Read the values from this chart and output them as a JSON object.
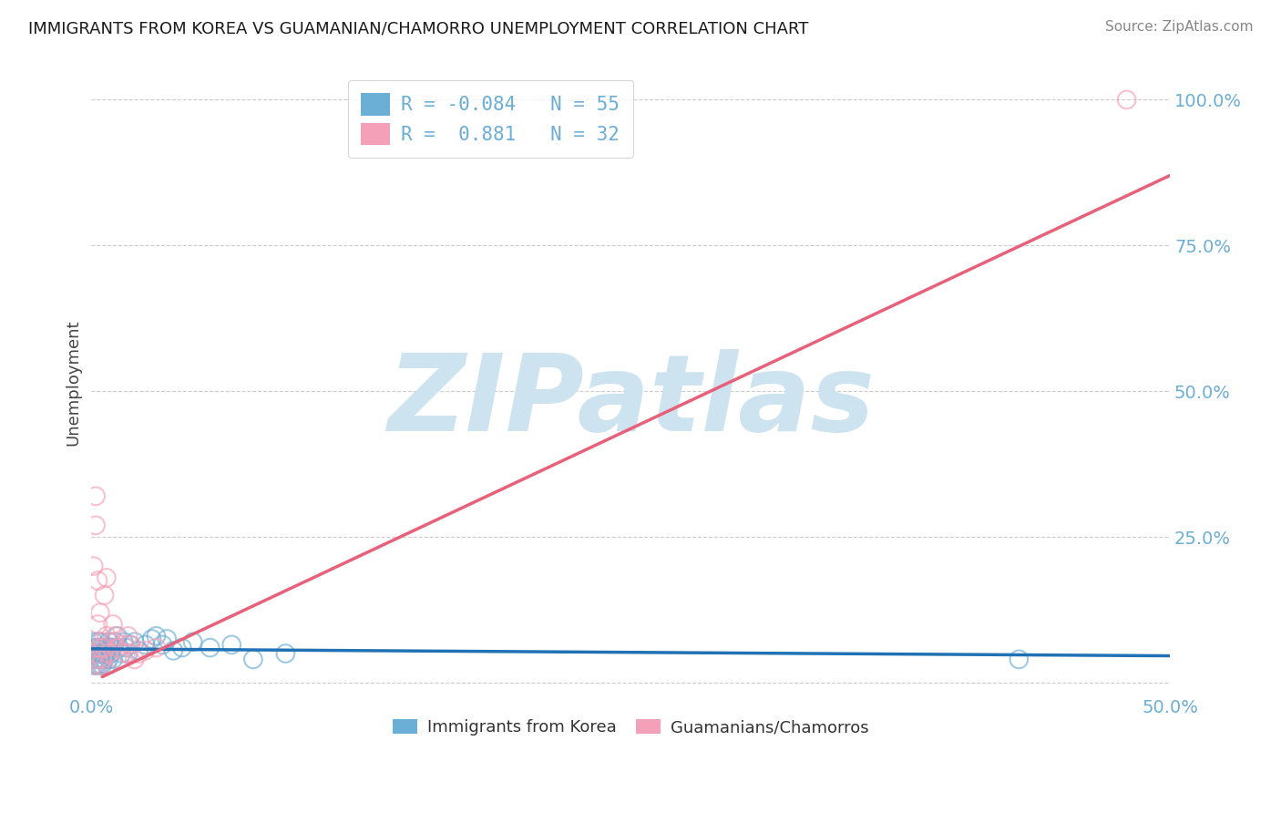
{
  "title": "IMMIGRANTS FROM KOREA VS GUAMANIAN/CHAMORRO UNEMPLOYMENT CORRELATION CHART",
  "source": "Source: ZipAtlas.com",
  "ylabel": "Unemployment",
  "xlim": [
    0.0,
    0.5
  ],
  "ylim": [
    -0.02,
    1.05
  ],
  "yticks": [
    0.0,
    0.25,
    0.5,
    0.75,
    1.0
  ],
  "ytick_labels": [
    "",
    "25.0%",
    "50.0%",
    "75.0%",
    "100.0%"
  ],
  "xtick_vals": [
    0.0,
    0.5
  ],
  "xtick_labels": [
    "0.0%",
    "50.0%"
  ],
  "color_blue": "#6baed6",
  "color_pink": "#f4a0b8",
  "color_blue_line": "#2171b5",
  "color_pink_line": "#e8617a",
  "color_tick": "#6baed6",
  "watermark": "ZIPatlas",
  "watermark_color": "#cde4f0",
  "legend_label1": "R = -0.084   N = 55",
  "legend_label2": "R =  0.881   N = 32",
  "blue_x": [
    0.001,
    0.001,
    0.001,
    0.002,
    0.002,
    0.002,
    0.002,
    0.003,
    0.003,
    0.003,
    0.003,
    0.004,
    0.004,
    0.004,
    0.004,
    0.004,
    0.005,
    0.005,
    0.005,
    0.005,
    0.006,
    0.006,
    0.006,
    0.007,
    0.007,
    0.007,
    0.008,
    0.008,
    0.009,
    0.009,
    0.01,
    0.01,
    0.011,
    0.012,
    0.013,
    0.014,
    0.015,
    0.016,
    0.017,
    0.018,
    0.02,
    0.022,
    0.025,
    0.028,
    0.03,
    0.033,
    0.035,
    0.038,
    0.042,
    0.047,
    0.055,
    0.065,
    0.075,
    0.09,
    0.43
  ],
  "blue_y": [
    0.03,
    0.05,
    0.07,
    0.04,
    0.06,
    0.03,
    0.05,
    0.06,
    0.03,
    0.05,
    0.07,
    0.04,
    0.06,
    0.03,
    0.05,
    0.07,
    0.04,
    0.06,
    0.03,
    0.05,
    0.05,
    0.04,
    0.06,
    0.06,
    0.03,
    0.05,
    0.07,
    0.04,
    0.05,
    0.06,
    0.06,
    0.04,
    0.07,
    0.08,
    0.06,
    0.05,
    0.07,
    0.06,
    0.05,
    0.065,
    0.07,
    0.055,
    0.065,
    0.075,
    0.08,
    0.065,
    0.075,
    0.055,
    0.06,
    0.07,
    0.06,
    0.065,
    0.04,
    0.05,
    0.04
  ],
  "pink_x": [
    0.001,
    0.001,
    0.002,
    0.002,
    0.002,
    0.003,
    0.003,
    0.003,
    0.004,
    0.004,
    0.004,
    0.005,
    0.005,
    0.006,
    0.006,
    0.007,
    0.007,
    0.008,
    0.009,
    0.01,
    0.011,
    0.012,
    0.013,
    0.015,
    0.016,
    0.017,
    0.018,
    0.02,
    0.022,
    0.025,
    0.03,
    0.48
  ],
  "pink_y": [
    0.03,
    0.2,
    0.05,
    0.27,
    0.32,
    0.04,
    0.175,
    0.1,
    0.06,
    0.12,
    0.03,
    0.07,
    0.04,
    0.15,
    0.06,
    0.18,
    0.08,
    0.05,
    0.07,
    0.1,
    0.08,
    0.06,
    0.04,
    0.065,
    0.05,
    0.08,
    0.065,
    0.04,
    0.05,
    0.055,
    0.06,
    1.0
  ],
  "blue_trend_x": [
    0.0,
    0.5
  ],
  "blue_trend_y": [
    0.058,
    0.046
  ],
  "pink_trend_x": [
    0.005,
    0.5
  ],
  "pink_trend_y": [
    0.01,
    0.87
  ],
  "figsize": [
    14.06,
    8.92
  ],
  "dpi": 100
}
